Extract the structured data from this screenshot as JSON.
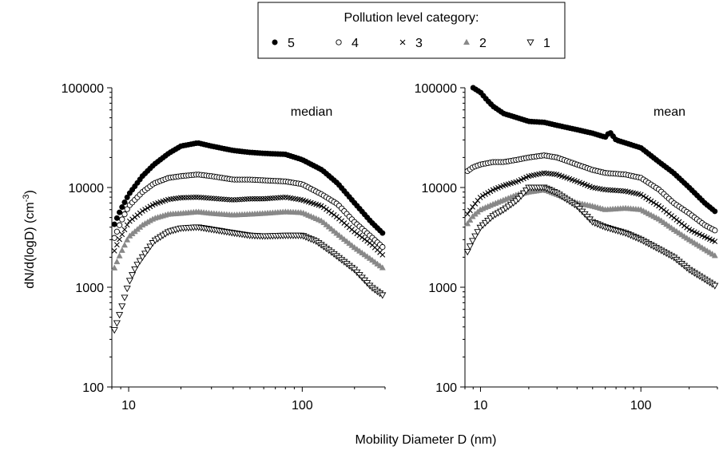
{
  "legend": {
    "title": "Pollution level category:",
    "entries": [
      {
        "label": "5",
        "marker": "filled-circle",
        "color": "#000000"
      },
      {
        "label": "4",
        "marker": "open-circle",
        "color": "#000000"
      },
      {
        "label": "3",
        "marker": "cross",
        "color": "#000000"
      },
      {
        "label": "2",
        "marker": "filled-triangle",
        "color": "#888888"
      },
      {
        "label": "1",
        "marker": "open-triangle-down",
        "color": "#000000"
      }
    ]
  },
  "ylabel": "dN/d(logD)  (cm",
  "ylabel_sup": "-3",
  "ylabel_close": ")",
  "xlabel": "Mobility Diameter D (nm)",
  "chart_data": [
    {
      "type": "scatter",
      "title": "median",
      "xscale": "log",
      "yscale": "log",
      "xlim": [
        8,
        300
      ],
      "ylim": [
        100,
        100000
      ],
      "x_ticks": [
        "10",
        "100"
      ],
      "y_ticks": [
        "100",
        "1000",
        "10000",
        "100000"
      ],
      "series": [
        {
          "name": "5",
          "points": [
            [
              8,
              3700
            ],
            [
              8.5,
              4800
            ],
            [
              9,
              6000
            ],
            [
              10,
              8500
            ],
            [
              12,
              13000
            ],
            [
              14,
              17000
            ],
            [
              17,
              22000
            ],
            [
              20,
              26000
            ],
            [
              25,
              28000
            ],
            [
              30,
              26000
            ],
            [
              40,
              23500
            ],
            [
              50,
              22500
            ],
            [
              60,
              22000
            ],
            [
              80,
              21500
            ],
            [
              100,
              19000
            ],
            [
              130,
              15000
            ],
            [
              160,
              11000
            ],
            [
              200,
              7000
            ],
            [
              250,
              4500
            ],
            [
              300,
              3300
            ]
          ]
        },
        {
          "name": "4",
          "points": [
            [
              8,
              2700
            ],
            [
              8.5,
              3500
            ],
            [
              9,
              4500
            ],
            [
              10,
              6500
            ],
            [
              12,
              9000
            ],
            [
              14,
              11000
            ],
            [
              17,
              12500
            ],
            [
              20,
              13000
            ],
            [
              25,
              13500
            ],
            [
              30,
              13000
            ],
            [
              40,
              12000
            ],
            [
              50,
              12000
            ],
            [
              60,
              11800
            ],
            [
              80,
              11500
            ],
            [
              100,
              10800
            ],
            [
              130,
              8500
            ],
            [
              160,
              6800
            ],
            [
              200,
              4500
            ],
            [
              250,
              3200
            ],
            [
              300,
              2400
            ]
          ]
        },
        {
          "name": "3",
          "points": [
            [
              8,
              2000
            ],
            [
              8.5,
              2600
            ],
            [
              9,
              3200
            ],
            [
              10,
              4500
            ],
            [
              12,
              5800
            ],
            [
              14,
              6800
            ],
            [
              17,
              7600
            ],
            [
              20,
              7900
            ],
            [
              25,
              8000
            ],
            [
              30,
              7800
            ],
            [
              40,
              7500
            ],
            [
              50,
              7700
            ],
            [
              60,
              7700
            ],
            [
              80,
              8000
            ],
            [
              100,
              7500
            ],
            [
              130,
              6500
            ],
            [
              160,
              5000
            ],
            [
              200,
              3600
            ],
            [
              250,
              2700
            ],
            [
              300,
              2000
            ]
          ]
        },
        {
          "name": "2",
          "points": [
            [
              8,
              1350
            ],
            [
              8.5,
              1750
            ],
            [
              9,
              2200
            ],
            [
              10,
              3200
            ],
            [
              12,
              4200
            ],
            [
              14,
              4900
            ],
            [
              17,
              5400
            ],
            [
              20,
              5500
            ],
            [
              25,
              5700
            ],
            [
              30,
              5500
            ],
            [
              40,
              5300
            ],
            [
              50,
              5400
            ],
            [
              60,
              5500
            ],
            [
              80,
              5700
            ],
            [
              100,
              5600
            ],
            [
              130,
              4600
            ],
            [
              160,
              3400
            ],
            [
              200,
              2500
            ],
            [
              250,
              1900
            ],
            [
              300,
              1500
            ]
          ]
        },
        {
          "name": "1",
          "points": [
            [
              8,
              320
            ],
            [
              8.5,
              420
            ],
            [
              9,
              580
            ],
            [
              9.5,
              800
            ],
            [
              10,
              1100
            ],
            [
              11,
              1600
            ],
            [
              12,
              2000
            ],
            [
              14,
              2900
            ],
            [
              17,
              3600
            ],
            [
              20,
              3900
            ],
            [
              25,
              4000
            ],
            [
              30,
              3800
            ],
            [
              40,
              3500
            ],
            [
              50,
              3300
            ],
            [
              60,
              3250
            ],
            [
              80,
              3300
            ],
            [
              100,
              3300
            ],
            [
              120,
              2900
            ],
            [
              150,
              2200
            ],
            [
              200,
              1500
            ],
            [
              250,
              1000
            ],
            [
              300,
              800
            ]
          ]
        }
      ]
    },
    {
      "type": "scatter",
      "title": "mean",
      "xscale": "log",
      "yscale": "log",
      "xlim": [
        8,
        300
      ],
      "ylim": [
        100,
        100000
      ],
      "x_ticks": [
        "10",
        "100"
      ],
      "y_ticks": [
        "100",
        "1000",
        "10000",
        "100000"
      ],
      "series": [
        {
          "name": "5",
          "points": [
            [
              9,
              100000
            ],
            [
              10,
              90000
            ],
            [
              11,
              75000
            ],
            [
              12,
              65000
            ],
            [
              14,
              55000
            ],
            [
              17,
              50000
            ],
            [
              20,
              46000
            ],
            [
              25,
              45000
            ],
            [
              30,
              42000
            ],
            [
              40,
              38000
            ],
            [
              50,
              35000
            ],
            [
              60,
              32000
            ],
            [
              64,
              36000
            ],
            [
              70,
              30000
            ],
            [
              80,
              28000
            ],
            [
              100,
              25000
            ],
            [
              130,
              18000
            ],
            [
              160,
              14000
            ],
            [
              200,
              10000
            ],
            [
              250,
              7000
            ],
            [
              300,
              5500
            ]
          ]
        },
        {
          "name": "4",
          "points": [
            [
              8,
              14000
            ],
            [
              9,
              16000
            ],
            [
              10,
              17000
            ],
            [
              12,
              18000
            ],
            [
              14,
              18000
            ],
            [
              17,
              19000
            ],
            [
              20,
              20000
            ],
            [
              25,
              21000
            ],
            [
              30,
              20000
            ],
            [
              40,
              17000
            ],
            [
              50,
              15000
            ],
            [
              60,
              14000
            ],
            [
              80,
              13500
            ],
            [
              100,
              12500
            ],
            [
              130,
              9500
            ],
            [
              160,
              7000
            ],
            [
              200,
              5500
            ],
            [
              250,
              4200
            ],
            [
              300,
              3600
            ]
          ]
        },
        {
          "name": "3",
          "points": [
            [
              8,
              5000
            ],
            [
              9,
              6500
            ],
            [
              10,
              8000
            ],
            [
              12,
              9500
            ],
            [
              14,
              10500
            ],
            [
              17,
              11500
            ],
            [
              20,
              13000
            ],
            [
              25,
              14000
            ],
            [
              30,
              13500
            ],
            [
              40,
              11500
            ],
            [
              50,
              10000
            ],
            [
              60,
              9500
            ],
            [
              80,
              9200
            ],
            [
              100,
              8500
            ],
            [
              130,
              6500
            ],
            [
              160,
              5000
            ],
            [
              200,
              3800
            ],
            [
              250,
              3200
            ],
            [
              300,
              2800
            ]
          ]
        },
        {
          "name": "2",
          "points": [
            [
              8,
              4000
            ],
            [
              9,
              5200
            ],
            [
              10,
              6000
            ],
            [
              12,
              6800
            ],
            [
              14,
              7500
            ],
            [
              17,
              8500
            ],
            [
              20,
              9000
            ],
            [
              25,
              9500
            ],
            [
              30,
              8500
            ],
            [
              40,
              7000
            ],
            [
              50,
              6500
            ],
            [
              60,
              6000
            ],
            [
              80,
              6200
            ],
            [
              100,
              6000
            ],
            [
              130,
              4800
            ],
            [
              160,
              3800
            ],
            [
              200,
              3000
            ],
            [
              250,
              2400
            ],
            [
              300,
              2000
            ]
          ]
        },
        {
          "name": "1",
          "points": [
            [
              8,
              2000
            ],
            [
              9,
              3000
            ],
            [
              10,
              4000
            ],
            [
              12,
              5200
            ],
            [
              14,
              6000
            ],
            [
              17,
              7500
            ],
            [
              20,
              10000
            ],
            [
              25,
              10000
            ],
            [
              30,
              8800
            ],
            [
              40,
              6500
            ],
            [
              50,
              4500
            ],
            [
              60,
              4000
            ],
            [
              80,
              3500
            ],
            [
              100,
              3000
            ],
            [
              130,
              2400
            ],
            [
              160,
              2000
            ],
            [
              200,
              1500
            ],
            [
              250,
              1200
            ],
            [
              300,
              1000
            ]
          ]
        }
      ]
    }
  ]
}
